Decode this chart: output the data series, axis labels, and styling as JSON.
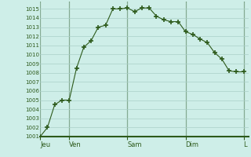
{
  "background_color": "#ceeee8",
  "plot_bg_color": "#ceeee8",
  "line_color": "#2d5a1b",
  "marker_color": "#2d5a1b",
  "grid_color": "#aacfc8",
  "axis_color": "#2d5a1b",
  "tick_label_color": "#2d5a1b",
  "ylim": [
    1001,
    1015.8
  ],
  "ytick_min": 1001,
  "ytick_max": 1015,
  "day_labels": [
    "Jeu",
    "Ven",
    "Sam",
    "Dim",
    "L"
  ],
  "day_positions": [
    0,
    24,
    72,
    120,
    168
  ],
  "x_values": [
    0,
    6,
    12,
    18,
    24,
    30,
    36,
    42,
    48,
    54,
    60,
    66,
    72,
    78,
    84,
    90,
    96,
    102,
    108,
    114,
    120,
    126,
    132,
    138,
    144,
    150,
    156,
    162,
    168
  ],
  "y_values": [
    1001,
    1002,
    1004.5,
    1005,
    1005,
    1008.5,
    1010.8,
    1011.5,
    1013,
    1013.2,
    1015,
    1015,
    1015.1,
    1014.7,
    1015.1,
    1015.1,
    1014.2,
    1013.8,
    1013.6,
    1013.6,
    1012.5,
    1012.2,
    1011.7,
    1011.3,
    1010.2,
    1009.5,
    1008.2,
    1008.1,
    1008.1
  ],
  "xlim_min": 0,
  "xlim_max": 172
}
